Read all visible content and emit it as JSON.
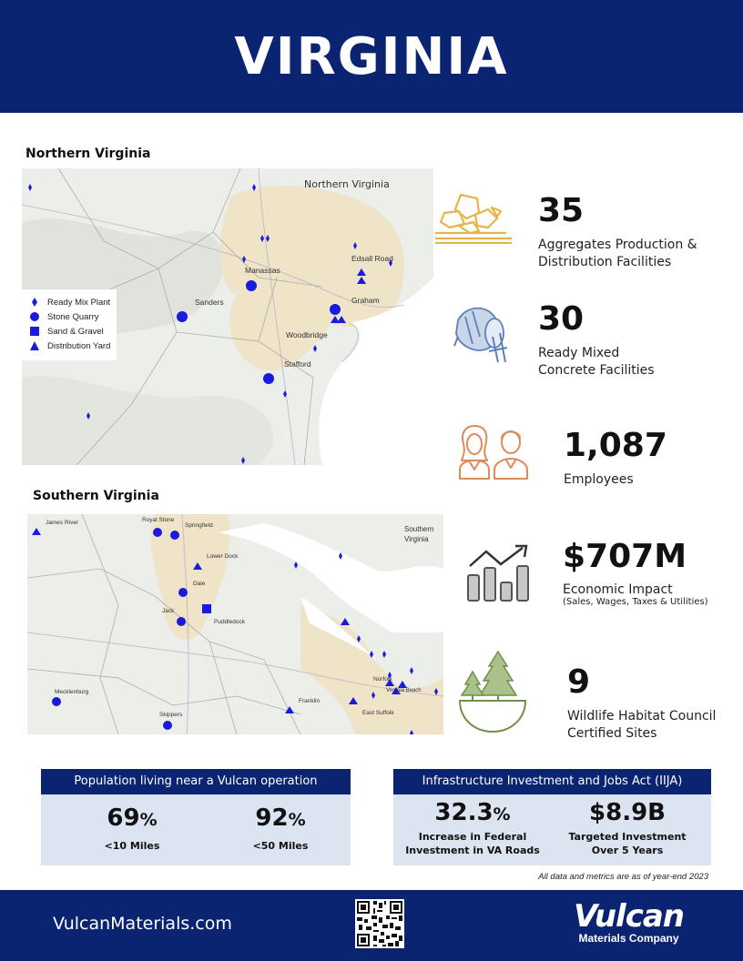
{
  "header": {
    "title": "VIRGINIA"
  },
  "north_map": {
    "section_label": "Northern Virginia",
    "map_title": "Northern Virginia",
    "places": [
      "Manassas",
      "Sanders",
      "Edsall Road",
      "Graham",
      "Woodbridge",
      "Stafford"
    ],
    "legend": [
      "Ready Mix Plant",
      "Stone Quarry",
      "Sand & Gravel",
      "Distribution Yard"
    ]
  },
  "south_map": {
    "section_label": "Southern Virginia",
    "map_title_1": "Southern",
    "map_title_2": "Virginia",
    "places": [
      "James River",
      "Royal Stone",
      "Springfield",
      "Lower Dock",
      "Dale",
      "Jack",
      "Puddledock",
      "Mecklenburg",
      "Skippers",
      "Franklin",
      "East Suffolk",
      "Norfolk",
      "Virginia Beach"
    ]
  },
  "stats": [
    {
      "value": "35",
      "label_1": "Aggregates Production &",
      "label_2": "Distribution Facilities",
      "icon": "aggregates-icon"
    },
    {
      "value": "30",
      "label_1": "Ready Mixed",
      "label_2": "Concrete Facilities",
      "icon": "concrete-mixer-icon"
    },
    {
      "value": "1,087",
      "label_1": "Employees",
      "icon": "employees-icon"
    },
    {
      "value": "$707M",
      "label_1": "Economic Impact",
      "sub": "(Sales, Wages, Taxes & Utilities)",
      "icon": "economic-chart-icon"
    },
    {
      "value": "9",
      "label_1": "Wildlife Habitat Council",
      "label_2": "Certified Sites",
      "icon": "trees-icon"
    }
  ],
  "population": {
    "title": "Population living near a Vulcan operation",
    "m1_value": "69",
    "m1_unit": "%",
    "m1_desc": "<10  Miles",
    "m2_value": "92",
    "m2_unit": "%",
    "m2_desc": "<50  Miles"
  },
  "iija": {
    "title": "Infrastructure Investment and Jobs Act (IIJA)",
    "m1_value": "32.3",
    "m1_unit": "%",
    "m1_desc_1": "Increase in Federal",
    "m1_desc_2": "Investment in VA Roads",
    "m2_value": "$8.9B",
    "m2_desc_1": "Targeted Investment",
    "m2_desc_2": "Over 5 Years"
  },
  "note": "All data and metrics are as of year-end 2023",
  "footer": {
    "url": "VulcanMaterials.com",
    "logo_1": "Vulcan",
    "logo_2": "Materials Company"
  },
  "colors": {
    "navy": "#0a2472",
    "marker": "#1a1adc",
    "light_blue": "#dce3f1",
    "gold": "#e8b44a",
    "orange": "#e0895a"
  }
}
